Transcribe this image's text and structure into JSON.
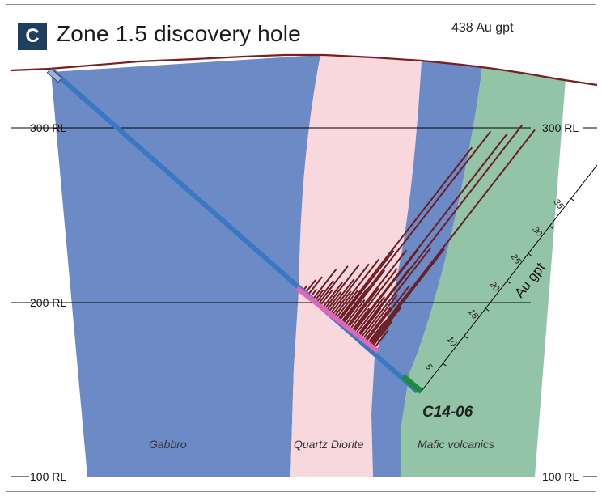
{
  "panel": {
    "letter": "C",
    "title": "Zone 1.5 discovery hole"
  },
  "peak_label": "438 Au gpt",
  "levels": {
    "rl300_left": "300 RL",
    "rl300_right": "300 RL",
    "rl200_left": "200 RL",
    "rl100_left": "100 RL",
    "rl100_right": "100 RL"
  },
  "scale": {
    "title": "Au gpt",
    "ticks": [
      "5",
      "10",
      "15",
      "20",
      "25",
      "30",
      "35"
    ]
  },
  "hole_id": "C14-06",
  "lithology": {
    "gabbro": "Gabbro",
    "quartz_diorite": "Quartz Diorite",
    "mafic_volcanics": "Mafic volcanics"
  },
  "colors": {
    "gabbro": "#6b8ac6",
    "quartz_diorite": "#f8d7dd",
    "mafic_volcanics": "#93c4a8",
    "topography": "#7a1e22",
    "drillhole": "#3a78c2",
    "mineralised_interval": "#e067b6",
    "assay_bars": "#6b1d24",
    "hole_end": "#1a8c3a",
    "badge": "#1f3f5e"
  }
}
